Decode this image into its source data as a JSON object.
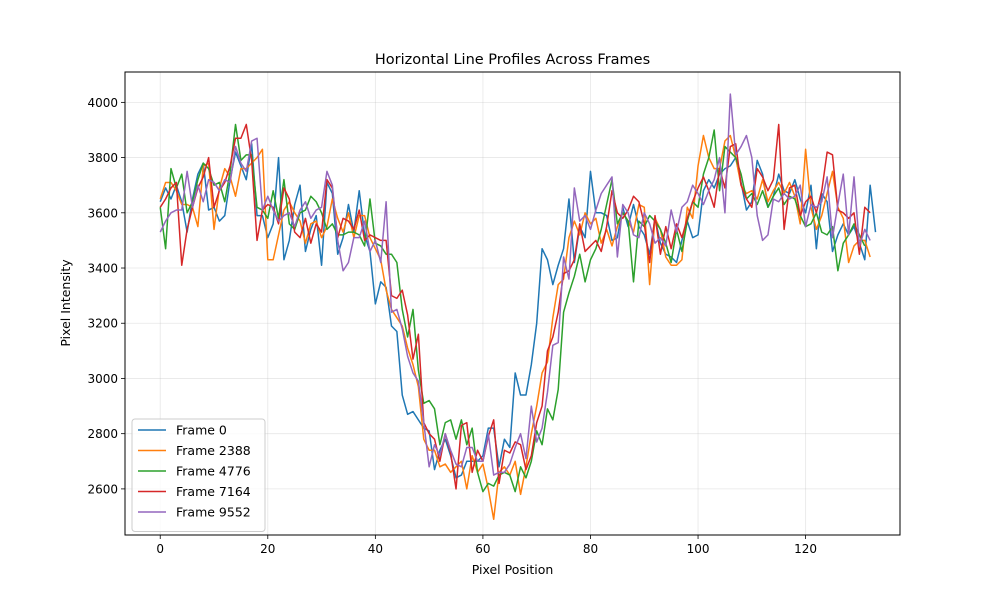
{
  "chart_data": {
    "type": "line",
    "title": "Horizontal Line Profiles Across Frames",
    "xlabel": "Pixel Position",
    "ylabel": "Pixel Intensity",
    "xlim": [
      -6.55,
      137.55
    ],
    "ylim": [
      2433,
      4110
    ],
    "xticks": [
      0,
      20,
      40,
      60,
      80,
      100,
      120
    ],
    "yticks": [
      2600,
      2800,
      3000,
      3200,
      3400,
      3600,
      3800,
      4000
    ],
    "grid": true,
    "legend_position": "lower-left",
    "x_start": 0,
    "x_step": 1,
    "series": [
      {
        "name": "Frame 0",
        "color": "#1f77b4",
        "values": [
          3640,
          3690,
          3650,
          3700,
          3640,
          3530,
          3650,
          3740,
          3780,
          3610,
          3620,
          3570,
          3590,
          3720,
          3820,
          3770,
          3720,
          3850,
          3590,
          3590,
          3510,
          3560,
          3800,
          3430,
          3500,
          3630,
          3700,
          3460,
          3540,
          3590,
          3410,
          3710,
          3670,
          3450,
          3510,
          3630,
          3530,
          3680,
          3520,
          3460,
          3270,
          3350,
          3330,
          3190,
          3170,
          2940,
          2870,
          2880,
          2850,
          2820,
          2810,
          2670,
          2740,
          2780,
          2720,
          2640,
          2650,
          2700,
          2700,
          2700,
          2720,
          2820,
          2820,
          2680,
          2780,
          2750,
          3020,
          2940,
          2940,
          3050,
          3200,
          3470,
          3430,
          3340,
          3410,
          3470,
          3650,
          3420,
          3550,
          3510,
          3750,
          3600,
          3600,
          3590,
          3500,
          3510,
          3620,
          3550,
          3630,
          3550,
          3520,
          3450,
          3580,
          3490,
          3450,
          3440,
          3420,
          3500,
          3570,
          3510,
          3520,
          3680,
          3720,
          3690,
          3740,
          3760,
          3770,
          3800,
          3710,
          3610,
          3640,
          3790,
          3740,
          3620,
          3660,
          3740,
          3680,
          3670,
          3720,
          3650,
          3600,
          3700,
          3470,
          3670,
          3640,
          3460,
          3520,
          3560,
          3520,
          3550,
          3490,
          3430,
          3700,
          3530
        ]
      },
      {
        "name": "Frame 2388",
        "color": "#ff7f0e",
        "values": [
          3650,
          3710,
          3710,
          3680,
          3630,
          3630,
          3620,
          3550,
          3770,
          3780,
          3540,
          3690,
          3760,
          3730,
          3660,
          3760,
          3760,
          3780,
          3800,
          3830,
          3430,
          3430,
          3520,
          3610,
          3640,
          3600,
          3570,
          3490,
          3560,
          3570,
          3510,
          3550,
          3650,
          3580,
          3530,
          3600,
          3510,
          3590,
          3590,
          3510,
          3470,
          3430,
          3320,
          3250,
          3220,
          3190,
          3110,
          3050,
          2970,
          2780,
          2740,
          2740,
          2680,
          2690,
          2660,
          2680,
          2700,
          2600,
          2720,
          2660,
          2690,
          2600,
          2490,
          2660,
          2680,
          2650,
          2700,
          2580,
          2680,
          2800,
          2900,
          3020,
          3060,
          3220,
          3340,
          3360,
          3510,
          3570,
          3520,
          3600,
          3560,
          3580,
          3490,
          3540,
          3480,
          3550,
          3600,
          3570,
          3530,
          3630,
          3620,
          3340,
          3580,
          3540,
          3440,
          3410,
          3410,
          3430,
          3620,
          3580,
          3770,
          3880,
          3800,
          3760,
          3760,
          3860,
          3880,
          3800,
          3700,
          3670,
          3680,
          3650,
          3720,
          3640,
          3680,
          3710,
          3670,
          3710,
          3660,
          3560,
          3830,
          3620,
          3540,
          3590,
          3670,
          3750,
          3620,
          3580,
          3420,
          3480,
          3500,
          3500,
          3440
        ]
      },
      {
        "name": "Frame 4776",
        "color": "#2ca02c",
        "values": [
          3620,
          3470,
          3760,
          3690,
          3740,
          3600,
          3640,
          3720,
          3780,
          3760,
          3700,
          3710,
          3640,
          3750,
          3920,
          3790,
          3810,
          3810,
          3620,
          3610,
          3580,
          3680,
          3580,
          3720,
          3560,
          3540,
          3600,
          3610,
          3660,
          3640,
          3600,
          3540,
          3560,
          3520,
          3520,
          3530,
          3530,
          3520,
          3480,
          3650,
          3490,
          3480,
          3450,
          3450,
          3420,
          3250,
          3150,
          3250,
          3030,
          2910,
          2920,
          2890,
          2760,
          2840,
          2850,
          2780,
          2850,
          2760,
          2820,
          2660,
          2590,
          2620,
          2610,
          2650,
          2660,
          2650,
          2590,
          2680,
          2640,
          2700,
          2810,
          2760,
          2890,
          2850,
          2960,
          3240,
          3310,
          3370,
          3450,
          3350,
          3430,
          3470,
          3540,
          3630,
          3720,
          3560,
          3600,
          3570,
          3350,
          3570,
          3550,
          3590,
          3570,
          3540,
          3490,
          3420,
          3540,
          3460,
          3570,
          3640,
          3620,
          3740,
          3800,
          3900,
          3680,
          3840,
          3820,
          3800,
          3740,
          3650,
          3670,
          3630,
          3680,
          3620,
          3660,
          3690,
          3630,
          3660,
          3650,
          3590,
          3550,
          3560,
          3600,
          3530,
          3520,
          3550,
          3390,
          3490,
          3520,
          3560,
          3520,
          3480
        ]
      },
      {
        "name": "Frame 7164",
        "color": "#d62728",
        "values": [
          3620,
          3650,
          3690,
          3710,
          3410,
          3540,
          3620,
          3690,
          3730,
          3800,
          3620,
          3680,
          3710,
          3770,
          3870,
          3870,
          3920,
          3790,
          3500,
          3610,
          3630,
          3620,
          3560,
          3690,
          3650,
          3530,
          3510,
          3580,
          3490,
          3560,
          3530,
          3720,
          3690,
          3510,
          3580,
          3570,
          3540,
          3610,
          3500,
          3520,
          3510,
          3500,
          3500,
          3300,
          3290,
          3320,
          3230,
          3070,
          3160,
          2840,
          2800,
          2780,
          2700,
          2800,
          2730,
          2600,
          2830,
          2840,
          2660,
          2740,
          2700,
          2790,
          2850,
          2620,
          2740,
          2730,
          2770,
          2760,
          2670,
          2720,
          2840,
          2900,
          3100,
          3150,
          3240,
          3380,
          3390,
          3430,
          3560,
          3460,
          3480,
          3500,
          3460,
          3550,
          3680,
          3600,
          3580,
          3610,
          3660,
          3640,
          3560,
          3420,
          3590,
          3450,
          3550,
          3470,
          3560,
          3510,
          3580,
          3640,
          3690,
          3730,
          3680,
          3620,
          3760,
          3690,
          3840,
          3850,
          3700,
          3650,
          3620,
          3760,
          3730,
          3680,
          3720,
          3920,
          3540,
          3690,
          3700,
          3590,
          3640,
          3660,
          3600,
          3680,
          3820,
          3810,
          3610,
          3600,
          3580,
          3600,
          3450,
          3620,
          3600
        ]
      },
      {
        "name": "Frame 9552",
        "color": "#9467bd",
        "values": [
          3530,
          3570,
          3600,
          3610,
          3610,
          3750,
          3620,
          3700,
          3640,
          3720,
          3710,
          3680,
          3720,
          3710,
          3840,
          3780,
          3750,
          3860,
          3870,
          3610,
          3660,
          3610,
          3570,
          3590,
          3600,
          3550,
          3610,
          3640,
          3580,
          3610,
          3620,
          3750,
          3700,
          3500,
          3390,
          3420,
          3510,
          3510,
          3570,
          3460,
          3500,
          3420,
          3640,
          3240,
          3250,
          3180,
          3080,
          3020,
          2990,
          2840,
          2680,
          2760,
          2720,
          2800,
          2740,
          2690,
          2680,
          2750,
          2750,
          2700,
          2700,
          2800,
          2650,
          2660,
          2660,
          2690,
          2750,
          2800,
          2710,
          2900,
          2770,
          2820,
          2950,
          3120,
          3130,
          3440,
          3360,
          3690,
          3570,
          3590,
          3540,
          3610,
          3670,
          3700,
          3730,
          3440,
          3630,
          3600,
          3520,
          3510,
          3600,
          3560,
          3490,
          3510,
          3480,
          3610,
          3530,
          3620,
          3640,
          3700,
          3670,
          3630,
          3680,
          3720,
          3800,
          3600,
          4030,
          3810,
          3840,
          3880,
          3800,
          3590,
          3500,
          3520,
          3650,
          3640,
          3670,
          3650,
          3660,
          3700,
          3550,
          3630,
          3620,
          3640,
          3730,
          3510,
          3630,
          3740,
          3520,
          3730,
          3480,
          3540,
          3500
        ]
      }
    ]
  }
}
